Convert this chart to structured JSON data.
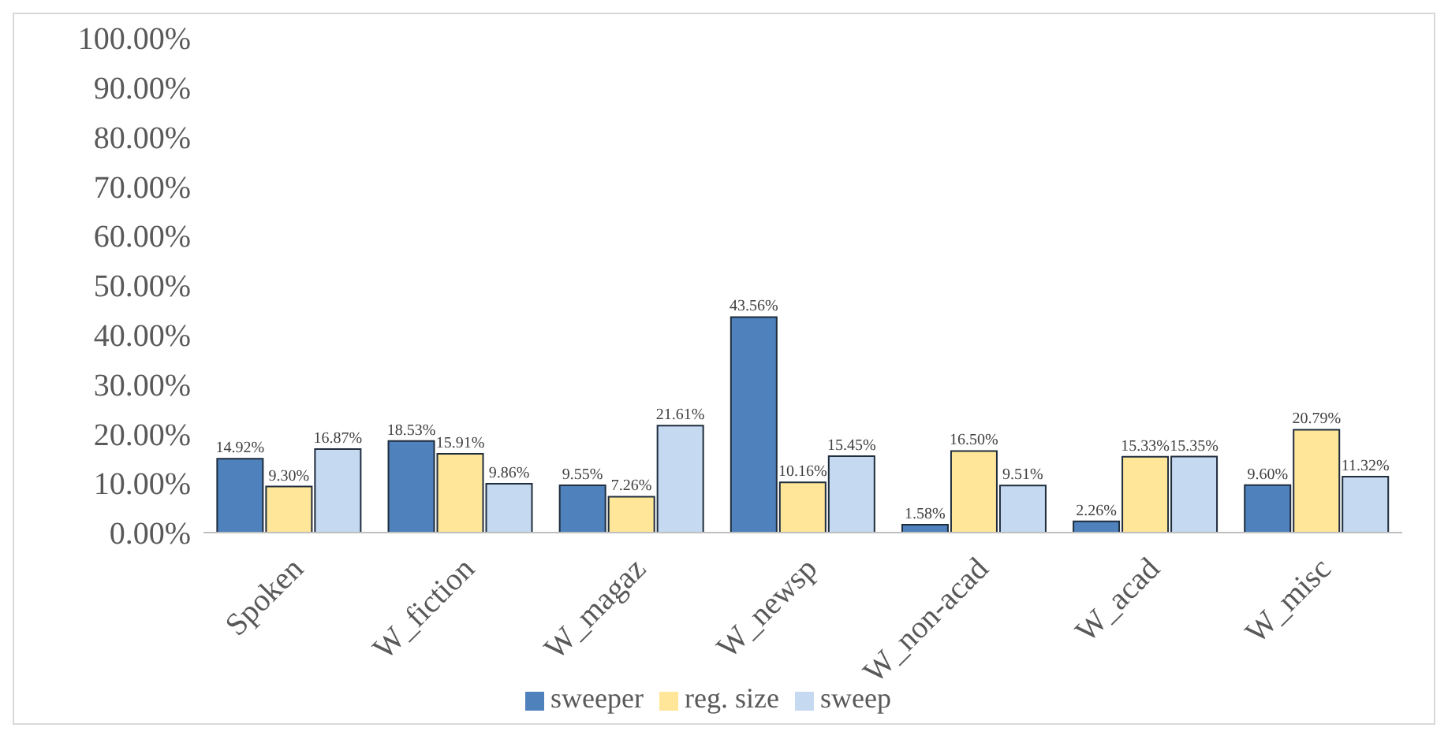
{
  "chart_data": {
    "type": "bar",
    "categories": [
      "Spoken",
      "W_fiction",
      "W_magaz",
      "W_newsp",
      "W_non-acad",
      "W_acad",
      "W_misc"
    ],
    "series": [
      {
        "name": "sweeper",
        "color": "#4f81bd",
        "values": [
          14.92,
          18.53,
          9.55,
          43.56,
          1.58,
          2.26,
          9.6
        ],
        "value_labels": [
          "14.92%",
          "18.53%",
          "9.55%",
          "43.56%",
          "1.58%",
          "2.26%",
          "9.60%"
        ]
      },
      {
        "name": "reg. size",
        "color": "#ffe699",
        "values": [
          9.3,
          15.91,
          7.26,
          10.16,
          16.5,
          15.33,
          20.79
        ],
        "value_labels": [
          "9.30%",
          "15.91%",
          "7.26%",
          "10.16%",
          "16.50%",
          "15.33%",
          "20.79%"
        ]
      },
      {
        "name": "sweep",
        "color": "#c5d9f1",
        "values": [
          16.87,
          9.86,
          21.61,
          15.45,
          9.51,
          15.35,
          11.32
        ],
        "value_labels": [
          "16.87%",
          "9.86%",
          "21.61%",
          "15.45%",
          "9.51%",
          "15.35%",
          "11.32%"
        ]
      }
    ],
    "ylim": [
      0,
      100
    ],
    "yticks": [
      {
        "value": 0,
        "label": "0.00%"
      },
      {
        "value": 10,
        "label": "10.00%"
      },
      {
        "value": 20,
        "label": "20.00%"
      },
      {
        "value": 30,
        "label": "30.00%"
      },
      {
        "value": 40,
        "label": "40.00%"
      },
      {
        "value": 50,
        "label": "50.00%"
      },
      {
        "value": 60,
        "label": "60.00%"
      },
      {
        "value": 70,
        "label": "70.00%"
      },
      {
        "value": 80,
        "label": "80.00%"
      },
      {
        "value": 90,
        "label": "90.00%"
      },
      {
        "value": 100,
        "label": "100.00%"
      }
    ],
    "legend": "bottom"
  }
}
